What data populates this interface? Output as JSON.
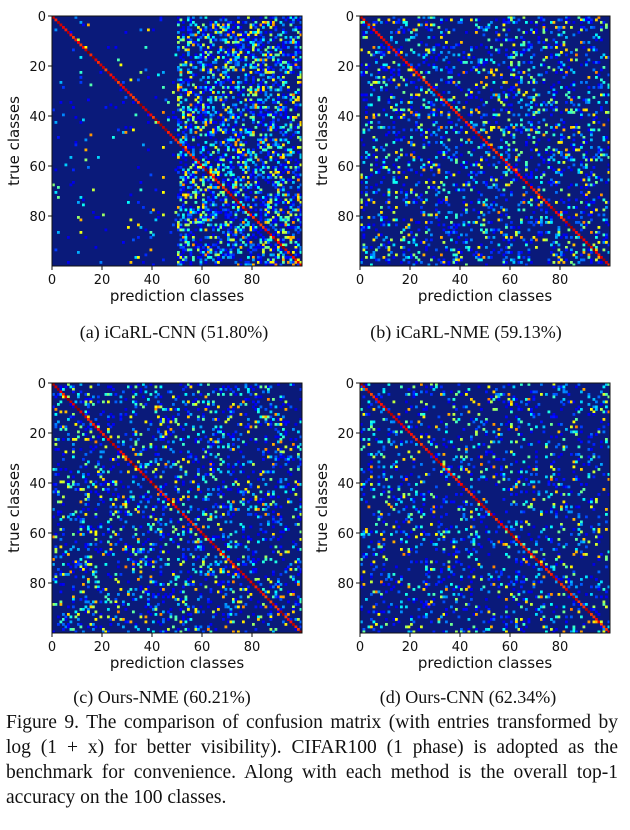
{
  "chart_data": [
    {
      "type": "heatmap",
      "panel": "a",
      "xlabel": "prediction classes",
      "ylabel": "true classes",
      "x_ticks": [
        "0",
        "20",
        "40",
        "60",
        "80"
      ],
      "y_ticks": [
        "0",
        "20",
        "40",
        "60",
        "80"
      ],
      "n_classes": 100,
      "colormap": "jet",
      "pattern": "diagonal dominant; columns 0-49 mostly empty, columns 50-99 densely populated (bias toward new classes)",
      "caption": "(a) iCaRL-CNN (51.80%)",
      "accuracy_percent": 51.8
    },
    {
      "type": "heatmap",
      "panel": "b",
      "xlabel": "prediction classes",
      "ylabel": "true classes",
      "x_ticks": [
        "0",
        "20",
        "40",
        "60",
        "80"
      ],
      "y_ticks": [
        "0",
        "20",
        "40",
        "60",
        "80"
      ],
      "n_classes": 100,
      "colormap": "jet",
      "pattern": "diagonal dominant; off-diagonal errors spread uniformly",
      "caption": "(b) iCaRL-NME (59.13%)",
      "accuracy_percent": 59.13
    },
    {
      "type": "heatmap",
      "panel": "c",
      "xlabel": "prediction classes",
      "ylabel": "true classes",
      "x_ticks": [
        "0",
        "20",
        "40",
        "60",
        "80"
      ],
      "y_ticks": [
        "0",
        "20",
        "40",
        "60",
        "80"
      ],
      "n_classes": 100,
      "colormap": "jet",
      "pattern": "diagonal dominant; off-diagonal errors spread uniformly",
      "caption": "(c) Ours-NME (60.21%)",
      "accuracy_percent": 60.21
    },
    {
      "type": "heatmap",
      "panel": "d",
      "xlabel": "prediction classes",
      "ylabel": "true classes",
      "x_ticks": [
        "0",
        "20",
        "40",
        "60",
        "80"
      ],
      "y_ticks": [
        "0",
        "20",
        "40",
        "60",
        "80"
      ],
      "n_classes": 100,
      "colormap": "jet",
      "pattern": "diagonal dominant; off-diagonal errors spread uniformly, slightly sparser",
      "caption": "(d) Ours-CNN (62.34%)",
      "accuracy_percent": 62.34
    }
  ],
  "figure_caption": "Figure 9. The comparison of confusion matrix (with entries transformed by log (1 + x) for better visibility). CIFAR100 (1 phase) is adopted as the benchmark for convenience. Along with each method is the overall top-1 accuracy on the 100 classes."
}
